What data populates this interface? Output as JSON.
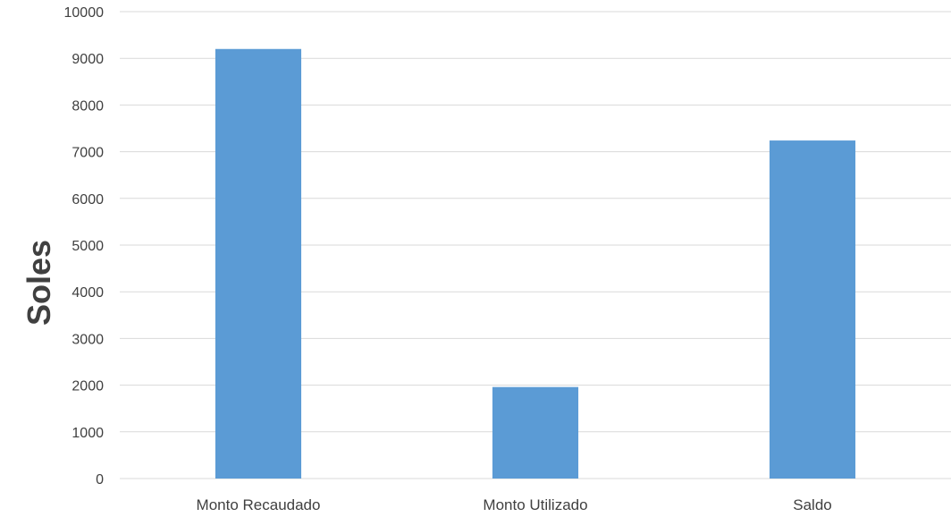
{
  "chart_data": {
    "type": "bar",
    "categories": [
      "Monto Recaudado",
      "Monto Utilizado",
      "Saldo"
    ],
    "values": [
      9200,
      1960,
      7240
    ],
    "title": "",
    "xlabel": "",
    "ylabel": "Soles",
    "ylim": [
      0,
      10000
    ],
    "yticks": [
      0,
      1000,
      2000,
      3000,
      4000,
      5000,
      6000,
      7000,
      8000,
      9000,
      10000
    ],
    "grid": true,
    "legend": "none",
    "bar_color": "#5b9bd5",
    "grid_color": "#d9d9d9",
    "text_color": "#404040"
  }
}
